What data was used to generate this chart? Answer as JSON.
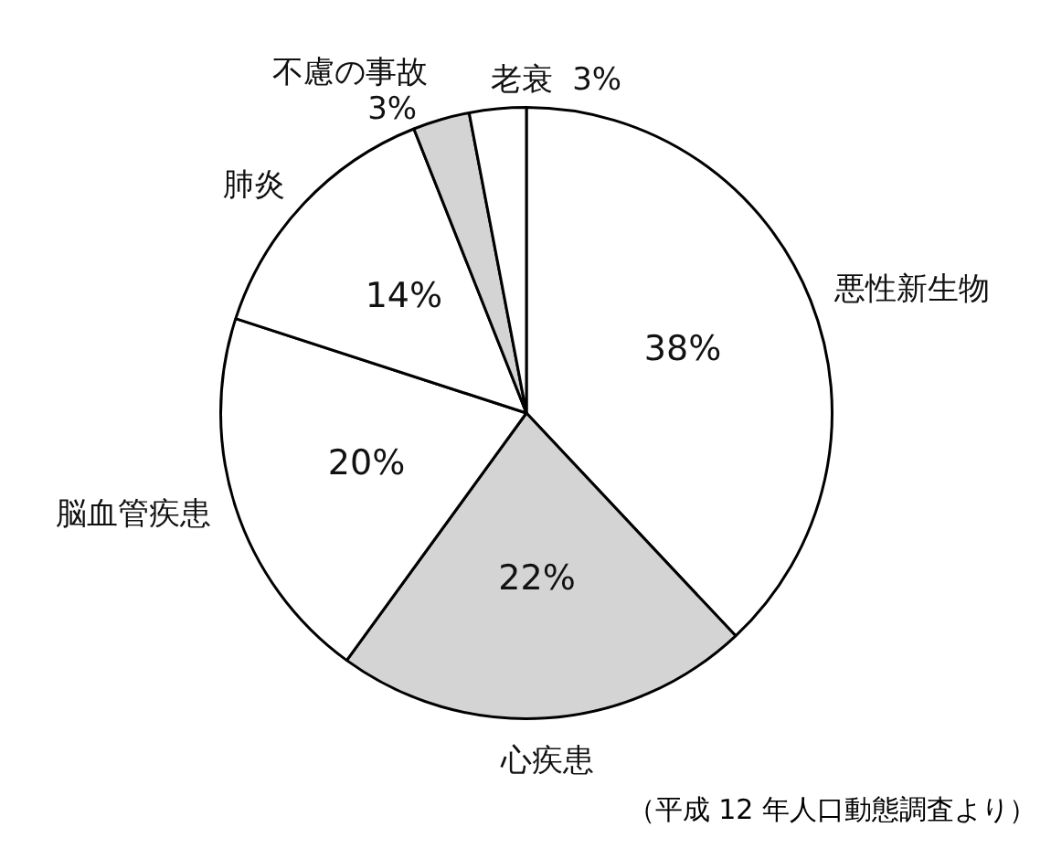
{
  "chart_data": {
    "type": "pie",
    "categories": [
      "悪性新生物",
      "心疾患",
      "脳血管疾患",
      "肺炎",
      "不慮の事故",
      "老衰"
    ],
    "values": [
      38,
      22,
      20,
      14,
      3,
      3
    ],
    "value_labels": [
      "38%",
      "22%",
      "20%",
      "14%",
      "3%",
      "3%"
    ],
    "colors": [
      "#ffffff",
      "#d4d4d4",
      "#ffffff",
      "#ffffff",
      "#d4d4d4",
      "#ffffff"
    ],
    "annotations": [
      "（平成 12 年人口動態調査より）"
    ]
  }
}
